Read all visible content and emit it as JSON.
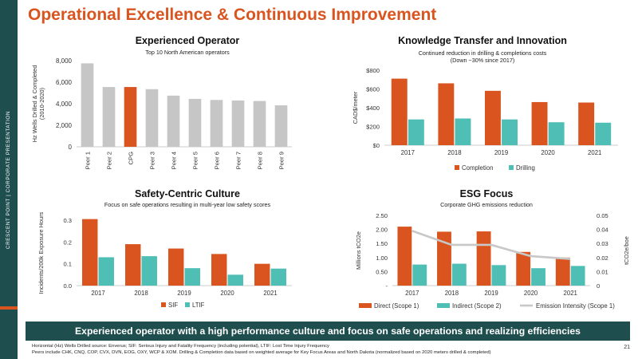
{
  "sidebar": {
    "label": "CRESCENT POINT  |  CORPORATE PRESENTATION"
  },
  "page": {
    "title": "Operational Excellence & Continuous Improvement",
    "number": "21"
  },
  "colors": {
    "orange": "#d9541e",
    "teal": "#4fbfb5",
    "gray": "#c6c6c6",
    "dark_teal": "#1f4e4f",
    "line_gray": "#c8c8c8"
  },
  "panels": {
    "operator": {
      "title": "Experienced Operator",
      "subtitle": "Top 10 North American operators"
    },
    "knowledge": {
      "title": "Knowledge Transfer and Innovation",
      "subtitle_line1": "Continued reduction in drilling & completions costs",
      "subtitle_line2": "(Down ~30% since 2017)"
    },
    "safety": {
      "title": "Safety-Centric Culture",
      "subtitle": "Focus on safe operations resulting in multi-year low safety scores"
    },
    "esg": {
      "title": "ESG Focus",
      "subtitle": "Corporate GHG emissions reduction"
    }
  },
  "chart_data": [
    {
      "type": "bar",
      "categories": [
        "Peer 1",
        "Peer 2",
        "CPG",
        "Peer 3",
        "Peer 4",
        "Peer 5",
        "Peer 6",
        "Peer 7",
        "Peer 8",
        "Peer 9"
      ],
      "values": [
        7750,
        5550,
        5550,
        5350,
        4750,
        4450,
        4350,
        4300,
        4250,
        3850
      ],
      "highlight": "CPG",
      "ylabel": "Hz Wells Drilled & Completed (2010-2020)",
      "ylim": [
        0,
        8000
      ],
      "yticks": [
        0,
        2000,
        4000,
        6000,
        8000
      ],
      "ytick_labels": [
        "0",
        "2,000",
        "4,000",
        "6,000",
        "8,000"
      ],
      "grid": false
    },
    {
      "type": "bar",
      "categories": [
        "2017",
        "2018",
        "2019",
        "2020",
        "2021"
      ],
      "series": [
        {
          "name": "Completion",
          "values": [
            710,
            660,
            580,
            460,
            455
          ]
        },
        {
          "name": "Drilling",
          "values": [
            275,
            285,
            275,
            245,
            240
          ]
        }
      ],
      "ylabel": "CAD$/meter",
      "ylim": [
        0,
        800
      ],
      "yticks": [
        0,
        200,
        400,
        600,
        800
      ],
      "ytick_labels": [
        "$0",
        "$200",
        "$400",
        "$600",
        "$800"
      ],
      "legend": "bottom",
      "grid": false
    },
    {
      "type": "bar",
      "categories": [
        "2017",
        "2018",
        "2019",
        "2020",
        "2021"
      ],
      "series": [
        {
          "name": "SIF",
          "values": [
            0.305,
            0.19,
            0.17,
            0.145,
            0.1
          ]
        },
        {
          "name": "LTIF",
          "values": [
            0.13,
            0.135,
            0.08,
            0.05,
            0.078
          ]
        }
      ],
      "ylabel": "Incidents/200k Exposure Hours",
      "ylim": [
        0,
        0.3
      ],
      "yticks": [
        0,
        0.1,
        0.2,
        0.3
      ],
      "ytick_labels": [
        "0.0",
        "0.1",
        "0.2",
        "0.3"
      ],
      "legend": "bottom",
      "grid": false
    },
    {
      "type": "bar",
      "categories": [
        "2017",
        "2018",
        "2019",
        "2020",
        "2021"
      ],
      "series": [
        {
          "name": "Direct (Scope 1)",
          "values": [
            2.1,
            1.92,
            1.93,
            1.2,
            1.0
          ]
        },
        {
          "name": "Indirect (Scope 2)",
          "values": [
            0.75,
            0.78,
            0.73,
            0.62,
            0.7
          ]
        },
        {
          "name": "Emission Intensity (Scope 1)",
          "type": "line",
          "axis": "right",
          "values": [
            0.039,
            0.029,
            0.029,
            0.021,
            0.019
          ]
        }
      ],
      "ylabel": "Millions tCO2e",
      "ylabel_right": "tCO2e/boe",
      "ylim": [
        0,
        2.5
      ],
      "ylim_right": [
        0,
        0.05
      ],
      "yticks": [
        0,
        0.5,
        1.0,
        1.5,
        2.0,
        2.5
      ],
      "ytick_labels": [
        "-",
        "0.50",
        "1.00",
        "1.50",
        "2.00",
        "2.50"
      ],
      "yticks_right": [
        0,
        0.01,
        0.02,
        0.03,
        0.04,
        0.05
      ],
      "ytick_labels_right": [
        "0",
        "0.01",
        "0.02",
        "0.03",
        "0.04",
        "0.05"
      ],
      "legend": "bottom",
      "grid": false
    }
  ],
  "banner": {
    "text": "Experienced operator with a high performance culture and focus on safe operations and realizing efficiencies"
  },
  "footnotes": {
    "line1": "Horizontal (Hz) Wells Drilled source: Enverus; SIF: Serious Injury and Fatality Frequency (including potential), LTIF: Lost Time Injury Frequency",
    "line2": "Peers include CHK, CNQ, COP, CVX, DVN, EOG, OXY, WCP & XOM. Drilling & Completion data based on weighted average for Key Focus Areas and North Dakota (normalized based on 2020 meters drilled & completed)"
  }
}
